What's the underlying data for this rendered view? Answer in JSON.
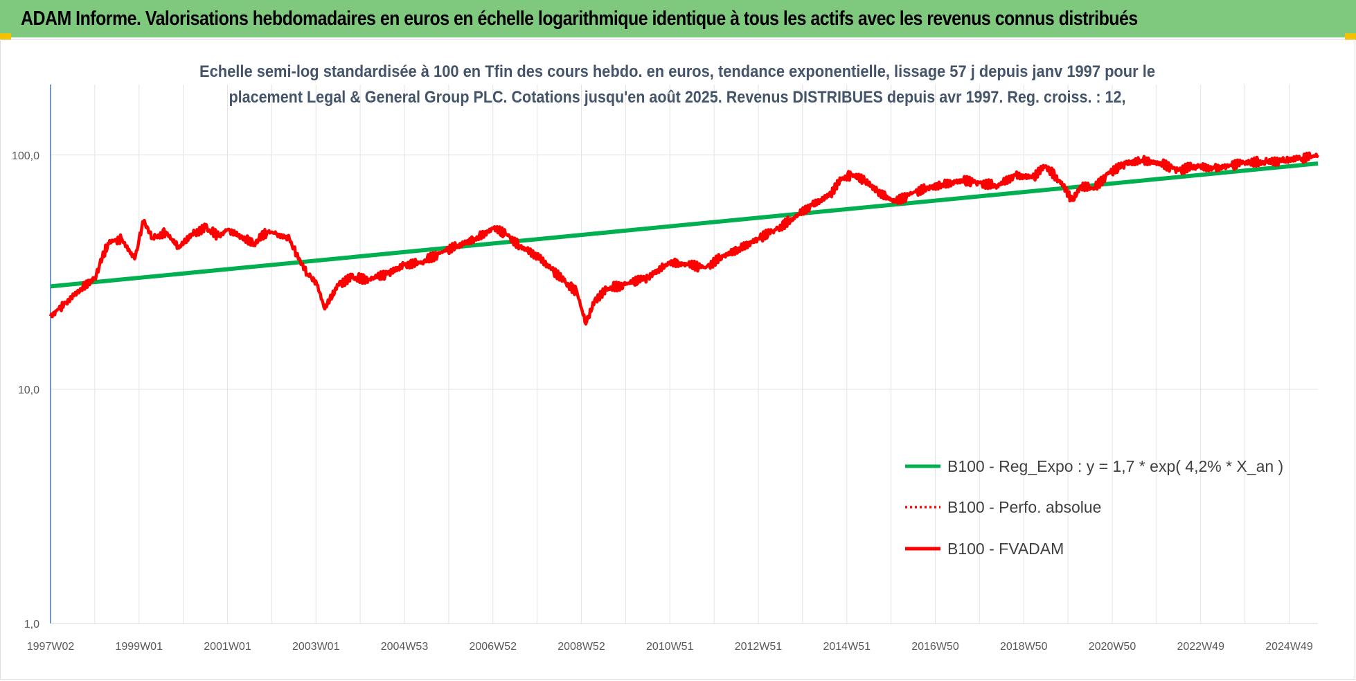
{
  "header": {
    "title": "ADAM Informe. Valorisations hebdomadaires en euros en échelle logarithmique identique à tous les actifs avec les revenus connus distribués"
  },
  "colors": {
    "header_bg": "#7fc97f",
    "corner_marks": "#f2c200",
    "trend_line": "#00b050",
    "perf_line": "#ff0000",
    "fvadam_line": "#ff0000"
  },
  "chart_data": {
    "type": "line",
    "title_lines": [
      "Echelle semi-log standardisée à 100 en Tfin des cours hebdo. en euros, tendance exponentielle, lissage 57 j depuis janv 1997 pour le",
      "placement Legal & General Group PLC. Cotations jusqu'en août 2025. Revenus DISTRIBUES depuis avr 1997. Reg. croiss. : 12,"
    ],
    "y_scale": "log",
    "ylim": [
      1,
      200
    ],
    "yticks": [
      "1,0",
      "10,0",
      "100,0"
    ],
    "ytick_values": [
      1,
      10,
      100
    ],
    "grid": true,
    "xlim": [
      1997.0,
      2025.65
    ],
    "xticks": [
      "1997W02",
      "1999W01",
      "2001W01",
      "2003W01",
      "2004W53",
      "2006W52",
      "2008W52",
      "2010W51",
      "2012W51",
      "2014W51",
      "2016W50",
      "2018W50",
      "2020W50",
      "2022W49",
      "2024W49"
    ],
    "xtick_years": [
      1997.0,
      1999.0,
      2001.0,
      2003.0,
      2005.0,
      2007.0,
      2009.0,
      2011.0,
      2013.0,
      2015.0,
      2017.0,
      2019.0,
      2021.0,
      2023.0,
      2025.0
    ],
    "legend_position": "bottom-right",
    "series": [
      {
        "name": "B100 - Reg_Expo : y = 1,7 * exp( 4,2% *  X_an )",
        "style": "solid-green",
        "x": [
          1997.0,
          2025.65
        ],
        "y": [
          27.5,
          92.0
        ]
      },
      {
        "name": "B100 - Perfo. absolue",
        "style": "dotted-red",
        "x": [],
        "y": []
      },
      {
        "name": "B100 - FVADAM",
        "style": "solid-red",
        "x": [
          1997.0,
          1997.3,
          1997.6,
          1998.0,
          1998.3,
          1998.6,
          1998.9,
          1999.1,
          1999.3,
          1999.6,
          1999.9,
          2000.2,
          2000.5,
          2000.8,
          2001.0,
          2001.3,
          2001.6,
          2001.9,
          2002.1,
          2002.4,
          2002.6,
          2002.8,
          2003.0,
          2003.2,
          2003.5,
          2003.8,
          2004.2,
          2004.6,
          2005.0,
          2005.4,
          2005.8,
          2006.2,
          2006.6,
          2007.0,
          2007.3,
          2007.6,
          2008.0,
          2008.3,
          2008.6,
          2008.9,
          2009.1,
          2009.3,
          2009.6,
          2010.0,
          2010.5,
          2011.0,
          2011.4,
          2011.8,
          2012.2,
          2012.6,
          2013.0,
          2013.4,
          2013.8,
          2014.2,
          2014.6,
          2014.9,
          2015.1,
          2015.4,
          2015.7,
          2016.1,
          2016.5,
          2016.8,
          2017.2,
          2017.6,
          2018.0,
          2018.4,
          2018.8,
          2019.2,
          2019.5,
          2019.8,
          2020.1,
          2020.3,
          2020.6,
          2020.9,
          2021.3,
          2021.7,
          2022.1,
          2022.5,
          2022.9,
          2023.3,
          2023.7,
          2024.1,
          2024.5,
          2024.9,
          2025.3,
          2025.65
        ],
        "y": [
          20.5,
          23.0,
          26.0,
          30.0,
          42.0,
          44.0,
          36.0,
          52.0,
          44.0,
          47.0,
          40.0,
          46.0,
          49.0,
          45.0,
          48.0,
          45.0,
          42.0,
          47.0,
          46.0,
          44.0,
          36.0,
          31.0,
          29.0,
          22.0,
          28.0,
          30.0,
          29.5,
          31.0,
          34.0,
          35.0,
          38.0,
          41.0,
          44.0,
          48.5,
          46.0,
          41.0,
          37.0,
          33.0,
          29.0,
          26.0,
          19.0,
          24.0,
          27.0,
          28.0,
          30.0,
          35.0,
          34.0,
          33.0,
          37.0,
          40.0,
          44.0,
          48.0,
          54.0,
          61.0,
          67.0,
          80.0,
          82.0,
          78.0,
          70.0,
          63.0,
          69.0,
          72.0,
          75.0,
          78.0,
          76.0,
          74.0,
          82.0,
          80.0,
          90.0,
          78.0,
          64.0,
          74.0,
          72.0,
          83.0,
          92.0,
          95.0,
          92.0,
          86.0,
          90.0,
          88.0,
          90.0,
          94.0,
          93.0,
          95.0,
          97.0,
          100.0
        ]
      }
    ]
  }
}
